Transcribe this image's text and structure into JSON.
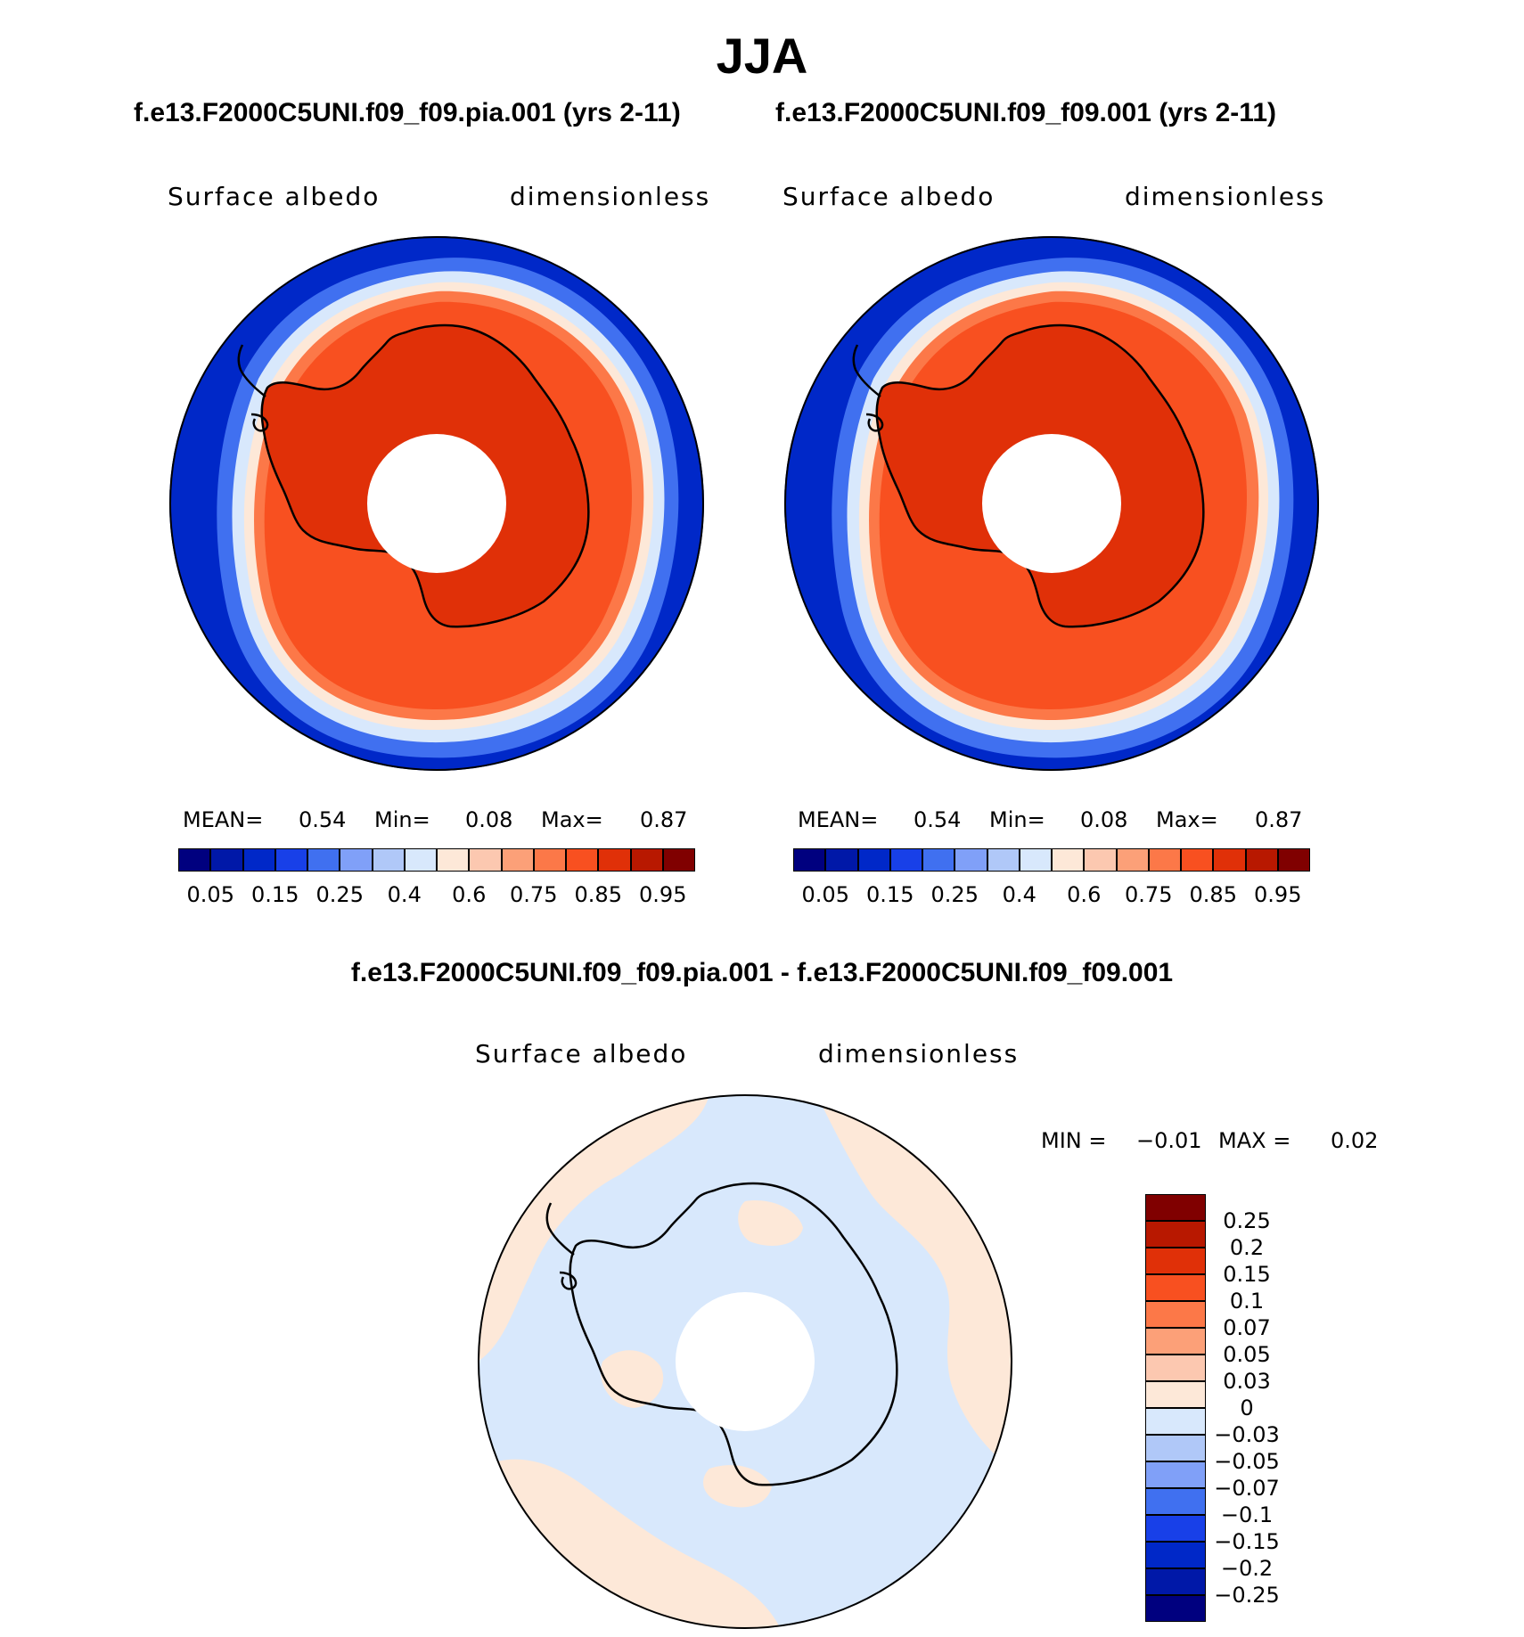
{
  "title": "JJA",
  "panels": [
    {
      "case": "f.e13.F2000C5UNI.f09_f09.pia.001 (yrs 2-11)",
      "variable": "Surface albedo",
      "units": "dimensionless",
      "stats": {
        "mean_label": "MEAN=",
        "mean": "0.54",
        "min_label": "Min=",
        "min": "0.08",
        "max_label": "Max=",
        "max": "0.87"
      }
    },
    {
      "case": "f.e13.F2000C5UNI.f09_f09.001 (yrs 2-11)",
      "variable": "Surface albedo",
      "units": "dimensionless",
      "stats": {
        "mean_label": "MEAN=",
        "mean": "0.54",
        "min_label": "Min=",
        "min": "0.08",
        "max_label": "Max=",
        "max": "0.87"
      }
    }
  ],
  "diff": {
    "case": "f.e13.F2000C5UNI.f09_f09.pia.001 - f.e13.F2000C5UNI.f09_f09.001",
    "variable": "Surface albedo",
    "units": "dimensionless",
    "stats": {
      "min_label": "MIN =",
      "min": "−0.01",
      "max_label": "MAX =",
      "max": "0.02"
    }
  },
  "colorbar_abs": {
    "colors": [
      "#00007f",
      "#0018a8",
      "#0028c8",
      "#1840e8",
      "#4070f0",
      "#80a0f8",
      "#b0c8f8",
      "#d8e8fc",
      "#fde8d8",
      "#fcc8b0",
      "#fca078",
      "#fc7848",
      "#f85020",
      "#e03008",
      "#b81800",
      "#800000"
    ],
    "labels": [
      "0.05",
      "0.15",
      "0.25",
      "0.4",
      "0.6",
      "0.75",
      "0.85",
      "0.95"
    ]
  },
  "colorbar_diff": {
    "colors": [
      "#800000",
      "#b81800",
      "#e03008",
      "#f85020",
      "#fc7848",
      "#fca078",
      "#fcc8b0",
      "#fde8d8",
      "#d8e8fc",
      "#b0c8f8",
      "#80a0f8",
      "#4070f0",
      "#1840e8",
      "#0028c8",
      "#0018a8",
      "#00007f"
    ],
    "labels": [
      "0.25",
      "0.2",
      "0.15",
      "0.1",
      "0.07",
      "0.05",
      "0.03",
      "0",
      "−0.03",
      "−0.05",
      "−0.07",
      "−0.1",
      "−0.15",
      "−0.2",
      "−0.25"
    ]
  },
  "map_colors": {
    "ocean": "#0028c8",
    "edge_blue": "#4070f0",
    "edge_light": "#d8e8fc",
    "edge_pale": "#fde8d8",
    "ice_outer": "#fc7848",
    "ice": "#f85020",
    "land": "#e03008",
    "diff_blue": "#d8e8fc",
    "diff_pink": "#fde8d8"
  }
}
